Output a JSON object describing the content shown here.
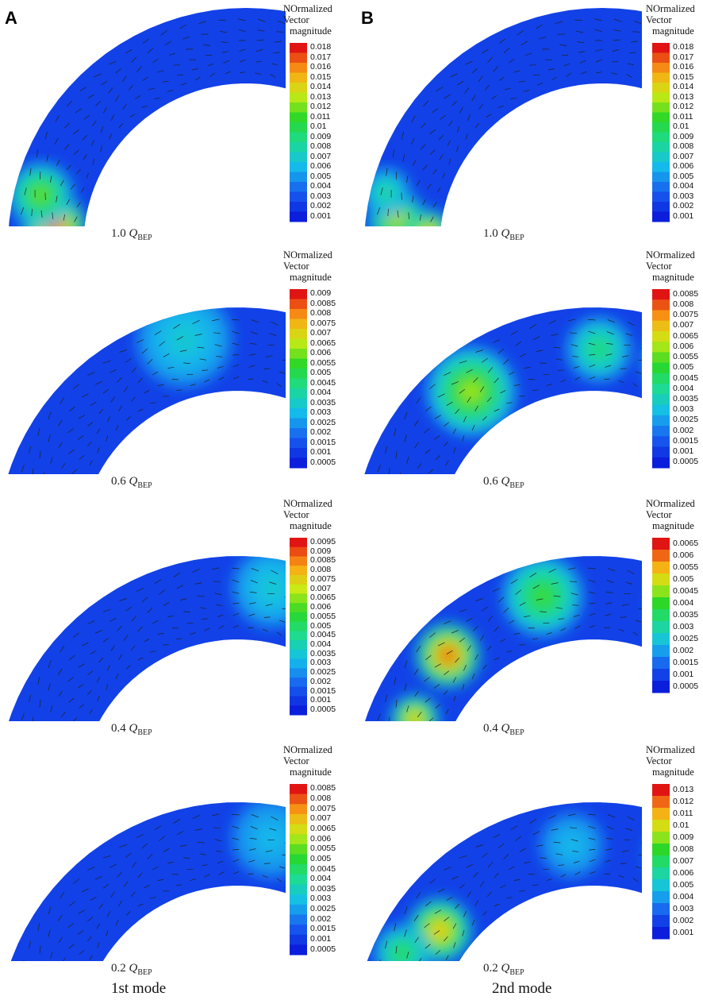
{
  "columns": [
    {
      "letter": "A",
      "mode_label": "1st mode"
    },
    {
      "letter": "B",
      "mode_label": "2nd mode"
    }
  ],
  "legend_title": [
    "NOrmalized",
    "Vector",
    "magnitude"
  ],
  "panels": [
    {
      "col": 0,
      "row": 0,
      "flow_value": "1.0",
      "flow_symbol": "Q",
      "flow_sub": "BEP",
      "ticks": [
        "0.018",
        "0.017",
        "0.016",
        "0.015",
        "0.014",
        "0.013",
        "0.012",
        "0.011",
        "0.01",
        "0.009",
        "0.008",
        "0.007",
        "0.006",
        "0.005",
        "0.004",
        "0.003",
        "0.002",
        "0.001"
      ],
      "hotspots": [
        {
          "u": 0.05,
          "v": 0.6,
          "level": 1.0,
          "r": 40
        },
        {
          "u": 0.1,
          "v": 0.35,
          "level": 0.65,
          "r": 40
        }
      ]
    },
    {
      "col": 1,
      "row": 0,
      "flow_value": "1.0",
      "flow_symbol": "Q",
      "flow_sub": "BEP",
      "ticks": [
        "0.018",
        "0.017",
        "0.016",
        "0.015",
        "0.014",
        "0.013",
        "0.012",
        "0.011",
        "0.01",
        "0.009",
        "0.008",
        "0.007",
        "0.006",
        "0.005",
        "0.004",
        "0.003",
        "0.002",
        "0.001"
      ],
      "hotspots": [
        {
          "u": 0.06,
          "v": 0.4,
          "level": 0.75,
          "r": 35
        },
        {
          "u": 0.04,
          "v": 0.85,
          "level": 0.85,
          "r": 28
        },
        {
          "u": 0.1,
          "v": 0.2,
          "level": 0.45,
          "r": 30
        }
      ]
    },
    {
      "col": 0,
      "row": 1,
      "flow_value": "0.6",
      "flow_symbol": "Q",
      "flow_sub": "BEP",
      "ticks": [
        "0.009",
        "0.0085",
        "0.008",
        "0.0075",
        "0.007",
        "0.0065",
        "0.006",
        "0.0055",
        "0.005",
        "0.0045",
        "0.004",
        "0.0035",
        "0.003",
        "0.0025",
        "0.002",
        "0.0015",
        "0.001",
        "0.0005"
      ],
      "hotspots": [
        {
          "u": 0.82,
          "v": 0.3,
          "level": 1.0,
          "r": 40
        },
        {
          "u": 0.9,
          "v": 0.7,
          "level": 0.45,
          "r": 35
        },
        {
          "u": 0.45,
          "v": 0.3,
          "level": 0.35,
          "r": 60
        }
      ]
    },
    {
      "col": 1,
      "row": 1,
      "flow_value": "0.6",
      "flow_symbol": "Q",
      "flow_sub": "BEP",
      "ticks": [
        "0.0085",
        "0.008",
        "0.0075",
        "0.007",
        "0.0065",
        "0.006",
        "0.0055",
        "0.005",
        "0.0045",
        "0.004",
        "0.0035",
        "0.003",
        "0.0025",
        "0.002",
        "0.0015",
        "0.001",
        "0.0005"
      ],
      "hotspots": [
        {
          "u": 0.3,
          "v": 0.5,
          "level": 0.7,
          "r": 55
        },
        {
          "u": 0.7,
          "v": 0.45,
          "level": 0.75,
          "r": 45
        },
        {
          "u": 0.97,
          "v": 0.2,
          "level": 0.9,
          "r": 12
        },
        {
          "u": 0.55,
          "v": 0.5,
          "level": 0.5,
          "r": 40
        }
      ]
    },
    {
      "col": 0,
      "row": 2,
      "flow_value": "0.4",
      "flow_symbol": "Q",
      "flow_sub": "BEP",
      "ticks": [
        "0.0095",
        "0.009",
        "0.0085",
        "0.008",
        "0.0075",
        "0.007",
        "0.0065",
        "0.006",
        "0.0055",
        "0.005",
        "0.0045",
        "0.004",
        "0.0035",
        "0.003",
        "0.0025",
        "0.002",
        "0.0015",
        "0.001",
        "0.0005"
      ],
      "hotspots": [
        {
          "u": 0.85,
          "v": 0.3,
          "level": 1.0,
          "r": 38
        },
        {
          "u": 0.9,
          "v": 0.7,
          "level": 0.45,
          "r": 32
        },
        {
          "u": 0.6,
          "v": 0.35,
          "level": 0.35,
          "r": 50
        }
      ]
    },
    {
      "col": 1,
      "row": 2,
      "flow_value": "0.4",
      "flow_symbol": "Q",
      "flow_sub": "BEP",
      "ticks": [
        "0.0065",
        "0.006",
        "0.0055",
        "0.005",
        "0.0045",
        "0.004",
        "0.0035",
        "0.003",
        "0.0025",
        "0.002",
        "0.0015",
        "0.001",
        "0.0005"
      ],
      "hotspots": [
        {
          "u": 0.25,
          "v": 0.45,
          "level": 1.0,
          "r": 40
        },
        {
          "u": 0.12,
          "v": 0.55,
          "level": 0.85,
          "r": 30
        },
        {
          "u": 0.7,
          "v": 0.35,
          "level": 0.85,
          "r": 40
        },
        {
          "u": 0.45,
          "v": 0.4,
          "level": 0.6,
          "r": 50
        },
        {
          "u": 0.9,
          "v": 0.6,
          "level": 0.5,
          "r": 30
        }
      ]
    },
    {
      "col": 0,
      "row": 3,
      "flow_value": "0.2",
      "flow_symbol": "Q",
      "flow_sub": "BEP",
      "ticks": [
        "0.0085",
        "0.008",
        "0.0075",
        "0.007",
        "0.0065",
        "0.006",
        "0.0055",
        "0.005",
        "0.0045",
        "0.004",
        "0.0035",
        "0.003",
        "0.0025",
        "0.002",
        "0.0015",
        "0.001",
        "0.0005"
      ],
      "hotspots": [
        {
          "u": 0.86,
          "v": 0.3,
          "level": 1.0,
          "r": 38
        },
        {
          "u": 0.92,
          "v": 0.72,
          "level": 0.7,
          "r": 30
        },
        {
          "u": 0.6,
          "v": 0.4,
          "level": 0.3,
          "r": 50
        }
      ]
    },
    {
      "col": 1,
      "row": 3,
      "flow_value": "0.2",
      "flow_symbol": "Q",
      "flow_sub": "BEP",
      "ticks": [
        "0.013",
        "0.012",
        "0.011",
        "0.01",
        "0.009",
        "0.008",
        "0.007",
        "0.006",
        "0.005",
        "0.004",
        "0.003",
        "0.002",
        "0.001"
      ],
      "hotspots": [
        {
          "u": 0.2,
          "v": 0.6,
          "level": 0.85,
          "r": 40
        },
        {
          "u": 0.13,
          "v": 0.35,
          "level": 0.55,
          "r": 35
        },
        {
          "u": 0.7,
          "v": 0.4,
          "level": 0.4,
          "r": 45
        },
        {
          "u": 0.5,
          "v": 0.5,
          "level": 0.3,
          "r": 40
        }
      ]
    }
  ]
}
